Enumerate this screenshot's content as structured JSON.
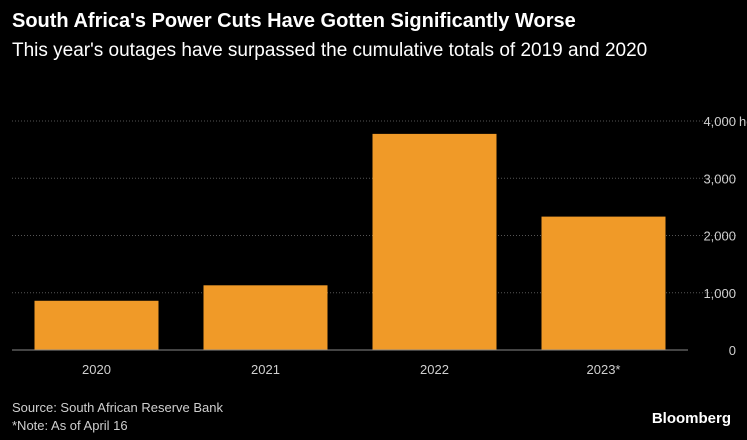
{
  "title": "South Africa's Power Cuts Have Gotten Significantly Worse",
  "subtitle": "This year's outages have surpassed the cumulative totals of 2019 and 2020",
  "source": "Source: South African Reserve Bank",
  "note": "*Note: As of April 16",
  "brand": "Bloomberg",
  "colors": {
    "bar": "#f09a28",
    "grid": "#555555",
    "text": "#ffffff",
    "muted": "#cfcfcf",
    "background": "#000000"
  },
  "chart_data": {
    "type": "bar",
    "categories": [
      "2020",
      "2021",
      "2022",
      "2023*"
    ],
    "values": [
      860,
      1130,
      3775,
      2330
    ],
    "ylim": [
      0,
      4000
    ],
    "yticks": [
      0,
      1000,
      2000,
      3000,
      4000
    ],
    "ytick_labels": [
      "0",
      "1,000",
      "2,000",
      "3,000",
      "4,000"
    ],
    "yunit": "hours",
    "grid": true
  }
}
